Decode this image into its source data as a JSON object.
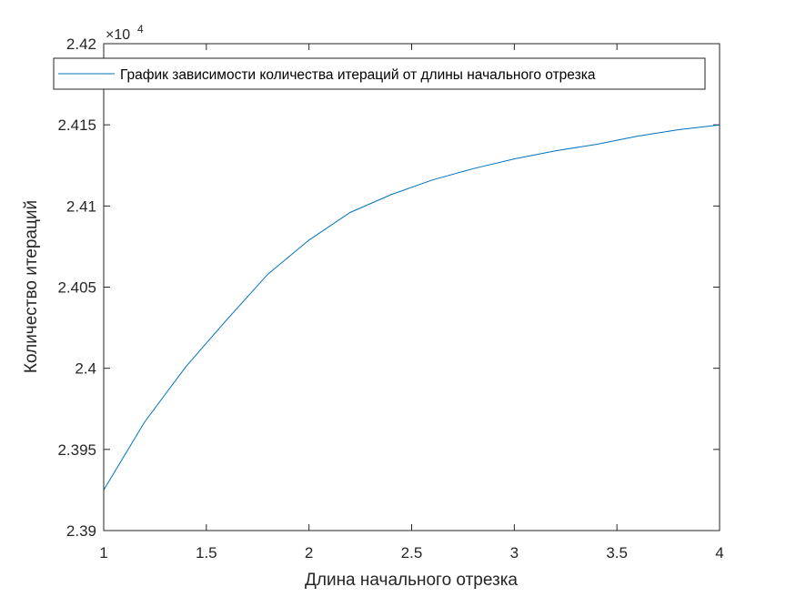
{
  "chart_data": {
    "type": "line",
    "xlabel": "Длина начального отрезка",
    "ylabel": "Количество итераций",
    "xlim": [
      1,
      4
    ],
    "ylim": [
      23900,
      24200
    ],
    "xticks": [
      1,
      1.5,
      2,
      2.5,
      3,
      3.5,
      4
    ],
    "xtick_labels": [
      "1",
      "1.5",
      "2",
      "2.5",
      "3",
      "3.5",
      "4"
    ],
    "yticks": [
      23900,
      23950,
      24000,
      24050,
      24100,
      24150,
      24200
    ],
    "ytick_labels": [
      "2.39",
      "2.395",
      "2.4",
      "2.405",
      "2.41",
      "2.415",
      "2.42"
    ],
    "y_exponent_label": "×10",
    "y_exponent_power": "4",
    "grid": false,
    "legend_position": "top",
    "series_color": "#0072BD",
    "series": [
      {
        "name": "График зависимости количества итераций от длины начального отрезка",
        "x": [
          1.0,
          1.2,
          1.4,
          1.6,
          1.8,
          2.0,
          2.2,
          2.4,
          2.6,
          2.8,
          3.0,
          3.2,
          3.4,
          3.6,
          3.8,
          4.0
        ],
        "y": [
          23925,
          23967,
          24001,
          24030,
          24058,
          24079,
          24096,
          24107,
          24116,
          24123,
          24129,
          24134,
          24138,
          24143,
          24147,
          24150
        ]
      }
    ]
  }
}
